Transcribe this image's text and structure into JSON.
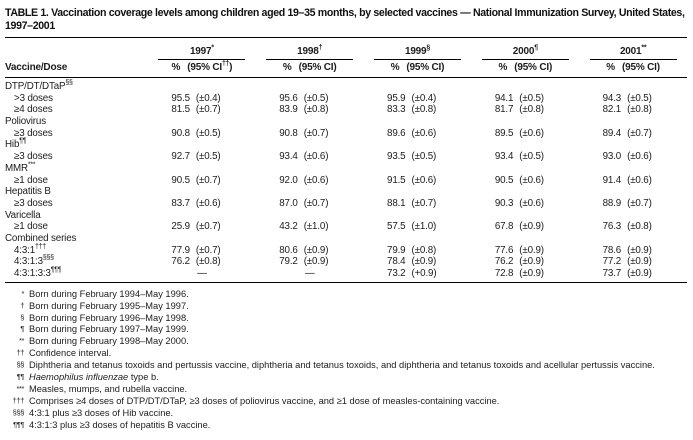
{
  "title": "TABLE 1. Vaccination coverage levels among children aged 19–35 months, by selected vaccines — National Immunization Survey, United States, 1997–2001",
  "colors": {
    "text": "#1c1c1c",
    "background": "#ffffff",
    "rule": "#000000"
  },
  "table": {
    "row_header": "Vaccine/Dose",
    "columns": [
      {
        "year": "1997",
        "year_sup": "*",
        "pct": "%",
        "ci_open": "(95% CI",
        "ci_sup": "††",
        "ci_close": ")"
      },
      {
        "year": "1998",
        "year_sup": "†",
        "pct": "%",
        "ci_open": "(95% CI",
        "ci_sup": "",
        "ci_close": ")"
      },
      {
        "year": "1999",
        "year_sup": "§",
        "pct": "%",
        "ci_open": "(95% CI",
        "ci_sup": "",
        "ci_close": ")"
      },
      {
        "year": "2000",
        "year_sup": "¶",
        "pct": "%",
        "ci_open": "(95% CI",
        "ci_sup": "",
        "ci_close": ")"
      },
      {
        "year": "2001",
        "year_sup": "**",
        "pct": "%",
        "ci_open": "(95% CI",
        "ci_sup": "",
        "ci_close": ")"
      }
    ],
    "rows": [
      {
        "type": "section",
        "label": "DTP/DT/DTaP",
        "sup": "§§"
      },
      {
        "type": "data",
        "label": ">3 doses",
        "sup": "",
        "cells": [
          [
            "95.5",
            "(±0.4)"
          ],
          [
            "95.6",
            "(±0.5)"
          ],
          [
            "95.9",
            "(±0.4)"
          ],
          [
            "94.1",
            "(±0.5)"
          ],
          [
            "94.3",
            "(±0.5)"
          ]
        ]
      },
      {
        "type": "data",
        "label": "≥4 doses",
        "sup": "",
        "cells": [
          [
            "81.5",
            "(±0.7)"
          ],
          [
            "83.9",
            "(±0.8)"
          ],
          [
            "83.3",
            "(±0.8)"
          ],
          [
            "81.7",
            "(±0.8)"
          ],
          [
            "82.1",
            "(±0.8)"
          ]
        ]
      },
      {
        "type": "section",
        "label": "Poliovirus",
        "sup": ""
      },
      {
        "type": "data",
        "label": "≥3 doses",
        "sup": "",
        "cells": [
          [
            "90.8",
            "(±0.5)"
          ],
          [
            "90.8",
            "(±0.7)"
          ],
          [
            "89.6",
            "(±0.6)"
          ],
          [
            "89.5",
            "(±0.6)"
          ],
          [
            "89.4",
            "(±0.7)"
          ]
        ]
      },
      {
        "type": "section",
        "label": "Hib",
        "sup": "¶¶"
      },
      {
        "type": "data",
        "label": "≥3 doses",
        "sup": "",
        "cells": [
          [
            "92.7",
            "(±0.5)"
          ],
          [
            "93.4",
            "(±0.6)"
          ],
          [
            "93.5",
            "(±0.5)"
          ],
          [
            "93.4",
            "(±0.5)"
          ],
          [
            "93.0",
            "(±0.6)"
          ]
        ]
      },
      {
        "type": "section",
        "label": "MMR",
        "sup": "***"
      },
      {
        "type": "data",
        "label": "≥1 dose",
        "sup": "",
        "cells": [
          [
            "90.5",
            "(±0.7)"
          ],
          [
            "92.0",
            "(±0.6)"
          ],
          [
            "91.5",
            "(±0.6)"
          ],
          [
            "90.5",
            "(±0.6)"
          ],
          [
            "91.4",
            "(±0.6)"
          ]
        ]
      },
      {
        "type": "section",
        "label": "Hepatitis B",
        "sup": ""
      },
      {
        "type": "data",
        "label": "≥3 doses",
        "sup": "",
        "cells": [
          [
            "83.7",
            "(±0.6)"
          ],
          [
            "87.0",
            "(±0.7)"
          ],
          [
            "88.1",
            "(±0.7)"
          ],
          [
            "90.3",
            "(±0.6)"
          ],
          [
            "88.9",
            "(±0.7)"
          ]
        ]
      },
      {
        "type": "section",
        "label": "Varicella",
        "sup": ""
      },
      {
        "type": "data",
        "label": "≥1 dose",
        "sup": "",
        "cells": [
          [
            "25.9",
            "(±0.7)"
          ],
          [
            "43.2",
            "(±1.0)"
          ],
          [
            "57.5",
            "(±1.0)"
          ],
          [
            "67.8",
            "(±0.9)"
          ],
          [
            "76.3",
            "(±0.8)"
          ]
        ]
      },
      {
        "type": "section",
        "label": "Combined series",
        "sup": ""
      },
      {
        "type": "data",
        "label": "4:3:1",
        "sup": "†††",
        "cells": [
          [
            "77.9",
            "(±0.7)"
          ],
          [
            "80.6",
            "(±0.9)"
          ],
          [
            "79.9",
            "(±0.8)"
          ],
          [
            "77.6",
            "(±0.9)"
          ],
          [
            "78.6",
            "(±0.9)"
          ]
        ]
      },
      {
        "type": "data",
        "label": "4:3:1:3",
        "sup": "§§§",
        "cells": [
          [
            "76.2",
            "(±0.8)"
          ],
          [
            "79.2",
            "(±0.9)"
          ],
          [
            "78.4",
            "(±0.9)"
          ],
          [
            "76.2",
            "(±0.9)"
          ],
          [
            "77.2",
            "(±0.9)"
          ]
        ]
      },
      {
        "type": "data",
        "label": "4:3:1:3:3",
        "sup": "¶¶¶",
        "cells": [
          [
            "—",
            ""
          ],
          [
            "—",
            ""
          ],
          [
            "73.2",
            "(+0.9)"
          ],
          [
            "72.8",
            "(±0.9)"
          ],
          [
            "73.7",
            "(±0.9)"
          ]
        ]
      }
    ]
  },
  "footnotes": [
    {
      "marker": "*",
      "italic": "",
      "text": "Born during February 1994–May 1996."
    },
    {
      "marker": "†",
      "italic": "",
      "text": "Born during February 1995–May 1997."
    },
    {
      "marker": "§",
      "italic": "",
      "text": "Born during February 1996–May 1998."
    },
    {
      "marker": "¶",
      "italic": "",
      "text": "Born during February 1997–May 1999."
    },
    {
      "marker": "**",
      "italic": "",
      "text": "Born during February 1998–May 2000."
    },
    {
      "marker": "††",
      "italic": "",
      "text": "Confidence interval."
    },
    {
      "marker": "§§",
      "italic": "",
      "text": "Diphtheria and tetanus toxoids and pertussis vaccine, diphtheria and tetanus toxoids, and diphtheria and tetanus toxoids and acellular pertussis vaccine."
    },
    {
      "marker": "¶¶",
      "italic": "Haemophilus influenzae",
      "text": " type b."
    },
    {
      "marker": "***",
      "italic": "",
      "text": "Measles, mumps, and rubella vaccine."
    },
    {
      "marker": "†††",
      "italic": "",
      "text": "Comprises ≥4 doses of DTP/DT/DTaP, ≥3 doses of poliovirus vaccine, and ≥1 dose of measles-containing vaccine."
    },
    {
      "marker": "§§§",
      "italic": "",
      "text": "4:3:1 plus ≥3 doses of Hib vaccine."
    },
    {
      "marker": "¶¶¶",
      "italic": "",
      "text": "4:3:1:3 plus ≥3 doses of hepatitis B vaccine."
    }
  ]
}
